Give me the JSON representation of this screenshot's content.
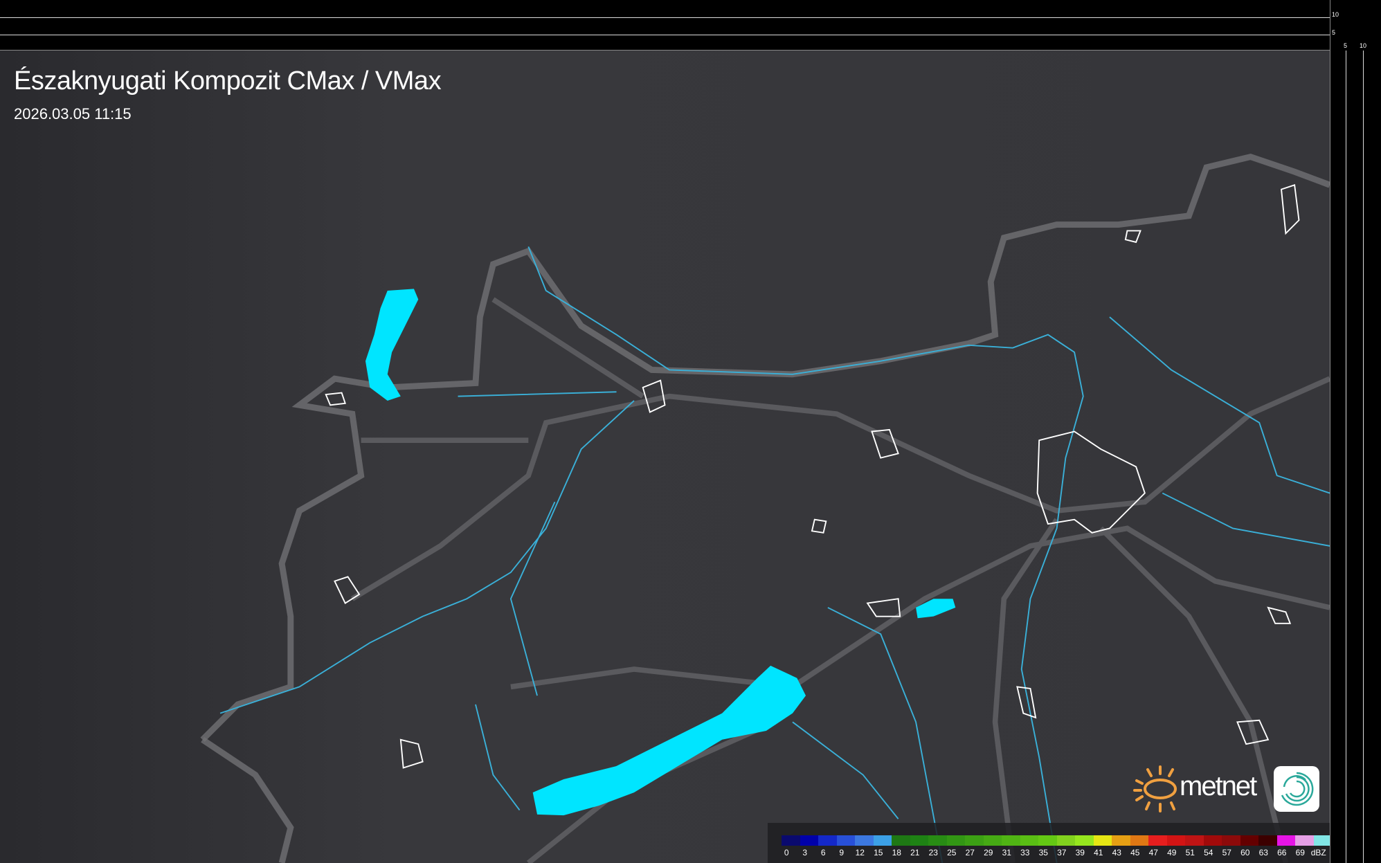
{
  "title": "Északnyugati Kompozit CMax / VMax",
  "timestamp": "2026.03.05 11:15",
  "scale": {
    "left_ticks": [
      "10",
      "5"
    ],
    "bottom_ticks": [
      "5",
      "10"
    ]
  },
  "legend": {
    "unit": "dBZ",
    "labels": [
      "0",
      "3",
      "6",
      "9",
      "12",
      "15",
      "18",
      "21",
      "23",
      "25",
      "27",
      "29",
      "31",
      "33",
      "35",
      "37",
      "39",
      "41",
      "43",
      "45",
      "47",
      "49",
      "51",
      "54",
      "57",
      "60",
      "63",
      "66",
      "69"
    ],
    "colors": [
      "#0a0a6e",
      "#0000aa",
      "#1428c8",
      "#2850d8",
      "#3c78e0",
      "#3ca0e6",
      "#1e7814",
      "#1e8214",
      "#288c14",
      "#329614",
      "#3ca014",
      "#46aa14",
      "#50b414",
      "#5abe14",
      "#64c814",
      "#82d21e",
      "#96e61e",
      "#e6e614",
      "#e6a014",
      "#e07814",
      "#e61e1e",
      "#d21414",
      "#be1414",
      "#a00a0a",
      "#8c0a0a",
      "#640000",
      "#3c0000",
      "#e614e6",
      "#e6a0e6",
      "#82e6e6"
    ]
  },
  "logo": {
    "text": "metnet",
    "sun_color": "#f0a040",
    "badge_color": "#2aa89a"
  },
  "colors": {
    "water": "#00e5ff",
    "river": "#3ab0d8",
    "border": "#707074",
    "terrain": "#36363a"
  }
}
